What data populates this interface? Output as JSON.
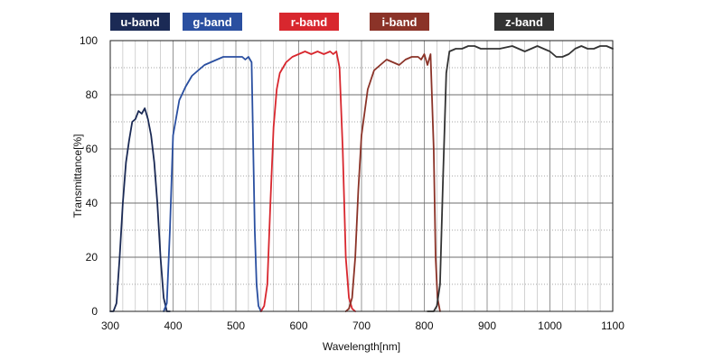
{
  "chart_data": {
    "type": "line",
    "title": "",
    "xlabel": "Wavelength[nm]",
    "ylabel": "Transmittance[%]",
    "xlim": [
      300,
      1100
    ],
    "ylim": [
      0,
      100
    ],
    "xticks": [
      300,
      400,
      500,
      600,
      700,
      800,
      900,
      1000,
      1100
    ],
    "yticks": [
      0,
      20,
      40,
      60,
      80,
      100
    ],
    "x_minor_step": 20,
    "y_minor_step": 10,
    "grid": true,
    "legend_position": "top",
    "series": [
      {
        "name": "u-band",
        "color": "#1b2a55",
        "points": [
          [
            300,
            0
          ],
          [
            305,
            0
          ],
          [
            310,
            3
          ],
          [
            315,
            20
          ],
          [
            320,
            40
          ],
          [
            325,
            55
          ],
          [
            330,
            63
          ],
          [
            335,
            70
          ],
          [
            340,
            71
          ],
          [
            345,
            74
          ],
          [
            350,
            73
          ],
          [
            355,
            75
          ],
          [
            360,
            71
          ],
          [
            365,
            65
          ],
          [
            370,
            55
          ],
          [
            375,
            40
          ],
          [
            380,
            20
          ],
          [
            385,
            5
          ],
          [
            390,
            0
          ],
          [
            395,
            0
          ]
        ]
      },
      {
        "name": "g-band",
        "color": "#2a4fa0",
        "points": [
          [
            385,
            0
          ],
          [
            390,
            3
          ],
          [
            395,
            30
          ],
          [
            400,
            65
          ],
          [
            410,
            78
          ],
          [
            420,
            83
          ],
          [
            430,
            87
          ],
          [
            440,
            89
          ],
          [
            450,
            91
          ],
          [
            460,
            92
          ],
          [
            470,
            93
          ],
          [
            480,
            94
          ],
          [
            490,
            94
          ],
          [
            500,
            94
          ],
          [
            510,
            94
          ],
          [
            515,
            93
          ],
          [
            520,
            94
          ],
          [
            525,
            92
          ],
          [
            530,
            30
          ],
          [
            533,
            10
          ],
          [
            536,
            2
          ],
          [
            540,
            0
          ]
        ]
      },
      {
        "name": "r-band",
        "color": "#d8272e",
        "points": [
          [
            540,
            0
          ],
          [
            545,
            2
          ],
          [
            550,
            10
          ],
          [
            555,
            40
          ],
          [
            560,
            68
          ],
          [
            565,
            82
          ],
          [
            570,
            88
          ],
          [
            580,
            92
          ],
          [
            590,
            94
          ],
          [
            600,
            95
          ],
          [
            610,
            96
          ],
          [
            620,
            95
          ],
          [
            630,
            96
          ],
          [
            640,
            95
          ],
          [
            650,
            96
          ],
          [
            655,
            95
          ],
          [
            660,
            96
          ],
          [
            665,
            90
          ],
          [
            670,
            60
          ],
          [
            675,
            20
          ],
          [
            680,
            5
          ],
          [
            685,
            1
          ],
          [
            690,
            0
          ]
        ]
      },
      {
        "name": "i-band",
        "color": "#8b3328",
        "points": [
          [
            675,
            0
          ],
          [
            680,
            1
          ],
          [
            685,
            5
          ],
          [
            690,
            20
          ],
          [
            695,
            45
          ],
          [
            700,
            65
          ],
          [
            710,
            82
          ],
          [
            720,
            89
          ],
          [
            730,
            91
          ],
          [
            740,
            93
          ],
          [
            750,
            92
          ],
          [
            760,
            91
          ],
          [
            770,
            93
          ],
          [
            780,
            94
          ],
          [
            790,
            94
          ],
          [
            795,
            93
          ],
          [
            800,
            95
          ],
          [
            805,
            91
          ],
          [
            810,
            95
          ],
          [
            815,
            60
          ],
          [
            818,
            20
          ],
          [
            821,
            5
          ],
          [
            825,
            0
          ]
        ]
      },
      {
        "name": "z-band",
        "color": "#333333",
        "points": [
          [
            805,
            0
          ],
          [
            815,
            0
          ],
          [
            820,
            2
          ],
          [
            825,
            10
          ],
          [
            830,
            50
          ],
          [
            835,
            88
          ],
          [
            840,
            96
          ],
          [
            850,
            97
          ],
          [
            860,
            97
          ],
          [
            870,
            98
          ],
          [
            880,
            98
          ],
          [
            890,
            97
          ],
          [
            900,
            97
          ],
          [
            920,
            97
          ],
          [
            940,
            98
          ],
          [
            950,
            97
          ],
          [
            960,
            96
          ],
          [
            970,
            97
          ],
          [
            980,
            98
          ],
          [
            990,
            97
          ],
          [
            1000,
            96
          ],
          [
            1010,
            94
          ],
          [
            1020,
            94
          ],
          [
            1030,
            95
          ],
          [
            1040,
            97
          ],
          [
            1050,
            98
          ],
          [
            1060,
            97
          ],
          [
            1070,
            97
          ],
          [
            1080,
            98
          ],
          [
            1090,
            98
          ],
          [
            1100,
            97
          ]
        ]
      }
    ]
  }
}
